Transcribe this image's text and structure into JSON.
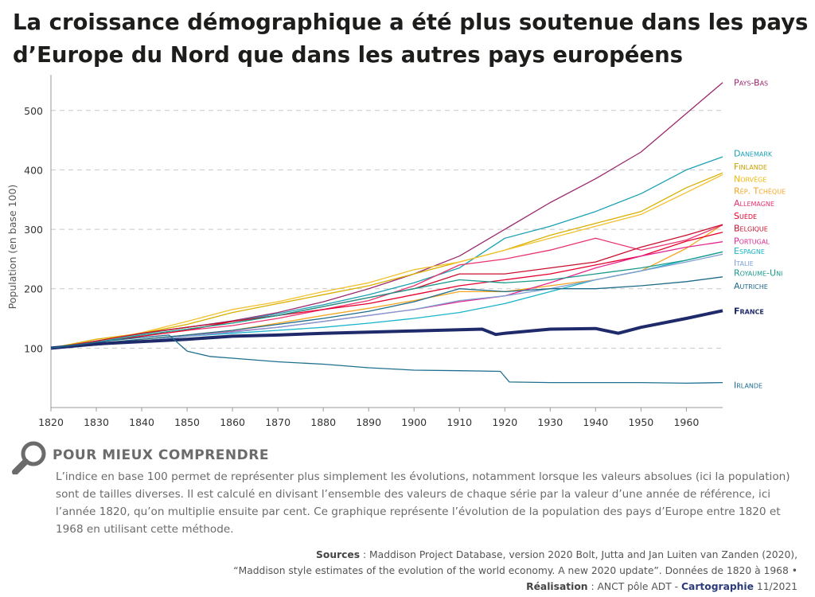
{
  "title": "La croissance démographique a été plus soutenue dans les pays d’Europe du Nord que dans les autres pays européens",
  "note": {
    "heading": "POUR MIEUX COMPRENDRE",
    "icon": "magnifier-icon",
    "text": "L’indice en base 100 permet de représenter plus simplement les évolutions, notamment lorsque les valeurs absolues (ici la population) sont de tailles diverses. Il est calculé en divisant l’ensemble des valeurs de chaque série par la valeur d’une année de référence, ici l’année 1820, qu’on multiplie ensuite par cent. Ce graphique représente l’évolution de la population des pays d’Europe entre 1820 et 1968 en utilisant cette méthode."
  },
  "sources": {
    "label1": "Sources",
    "line1": " : Maddison Project Database, version 2020 Bolt, Jutta and Jan Luiten van Zanden (2020),",
    "line2": "“Maddison style estimates of the evolution of the world economy. A new 2020 update”. Données de 1820 à 1968 •",
    "label2": "Réalisation",
    "line3": " : ANCT pôle ADT - ",
    "carto": "Cartographie",
    "date": " 11/2021"
  },
  "chart_data": {
    "type": "line",
    "ylabel": "Population (en base 100)",
    "xlim": [
      1820,
      1968
    ],
    "ylim": [
      0,
      560
    ],
    "xticks": [
      1820,
      1830,
      1840,
      1850,
      1860,
      1870,
      1880,
      1890,
      1900,
      1910,
      1920,
      1930,
      1940,
      1950,
      1960
    ],
    "yticks": [
      100,
      200,
      300,
      400,
      500
    ],
    "grid": "horizontal-dashed",
    "series": [
      {
        "name": "Pays-Bas",
        "color": "#9b2a6e",
        "x": [
          1820,
          1830,
          1840,
          1850,
          1860,
          1870,
          1880,
          1890,
          1900,
          1910,
          1920,
          1930,
          1940,
          1950,
          1960,
          1968
        ],
        "values": [
          100,
          112,
          125,
          135,
          146,
          160,
          178,
          200,
          225,
          255,
          300,
          345,
          385,
          430,
          495,
          547
        ]
      },
      {
        "name": "Danemark",
        "color": "#1ba0b5",
        "x": [
          1820,
          1830,
          1840,
          1850,
          1860,
          1870,
          1880,
          1890,
          1900,
          1910,
          1920,
          1930,
          1940,
          1950,
          1960,
          1968
        ],
        "values": [
          100,
          112,
          124,
          135,
          145,
          158,
          173,
          190,
          210,
          235,
          285,
          305,
          330,
          360,
          400,
          422
        ]
      },
      {
        "name": "Finlande",
        "color": "#d9b000",
        "x": [
          1820,
          1830,
          1840,
          1850,
          1860,
          1870,
          1880,
          1890,
          1900,
          1910,
          1920,
          1930,
          1940,
          1950,
          1960,
          1968
        ],
        "values": [
          100,
          115,
          125,
          140,
          160,
          175,
          190,
          205,
          225,
          245,
          265,
          290,
          310,
          330,
          370,
          395
        ]
      },
      {
        "name": "Norvège",
        "color": "#f2c12e",
        "x": [
          1820,
          1830,
          1840,
          1850,
          1860,
          1870,
          1880,
          1890,
          1900,
          1910,
          1920,
          1930,
          1940,
          1950,
          1960,
          1968
        ],
        "values": [
          100,
          112,
          126,
          145,
          165,
          178,
          195,
          210,
          232,
          245,
          265,
          285,
          305,
          325,
          362,
          392
        ]
      },
      {
        "name": "Rép. Tchèque",
        "color": "#f5a623",
        "x": [
          1820,
          1830,
          1840,
          1850,
          1860,
          1870,
          1880,
          1890,
          1900,
          1910,
          1920,
          1930,
          1940,
          1950,
          1960,
          1968
        ],
        "values": [
          100,
          108,
          115,
          122,
          130,
          142,
          155,
          167,
          180,
          195,
          195,
          205,
          215,
          230,
          268,
          308
        ]
      },
      {
        "name": "Allemagne",
        "color": "#e8336f",
        "x": [
          1820,
          1830,
          1840,
          1850,
          1860,
          1870,
          1880,
          1890,
          1900,
          1910,
          1920,
          1930,
          1940,
          1950,
          1960,
          1968
        ],
        "values": [
          100,
          110,
          120,
          130,
          138,
          150,
          165,
          180,
          205,
          240,
          250,
          265,
          285,
          265,
          282,
          307
        ]
      },
      {
        "name": "Suède",
        "color": "#e5002d",
        "x": [
          1820,
          1830,
          1840,
          1850,
          1860,
          1870,
          1880,
          1890,
          1900,
          1910,
          1920,
          1930,
          1940,
          1950,
          1960,
          1968
        ],
        "values": [
          100,
          110,
          120,
          130,
          145,
          155,
          165,
          175,
          190,
          205,
          215,
          225,
          240,
          255,
          280,
          295
        ]
      },
      {
        "name": "Belgique",
        "color": "#c8102e",
        "x": [
          1820,
          1830,
          1840,
          1850,
          1860,
          1870,
          1880,
          1890,
          1900,
          1910,
          1920,
          1930,
          1940,
          1950,
          1960,
          1968
        ],
        "values": [
          100,
          112,
          125,
          135,
          145,
          155,
          170,
          185,
          200,
          225,
          225,
          235,
          245,
          270,
          290,
          308
        ]
      },
      {
        "name": "Portugal",
        "color": "#e4268f",
        "x": [
          1820,
          1830,
          1840,
          1850,
          1860,
          1870,
          1880,
          1890,
          1900,
          1910,
          1920,
          1930,
          1940,
          1950,
          1960,
          1968
        ],
        "values": [
          100,
          105,
          112,
          120,
          128,
          135,
          145,
          155,
          165,
          178,
          188,
          210,
          235,
          255,
          270,
          279
        ]
      },
      {
        "name": "Espagne",
        "color": "#19b5c8",
        "x": [
          1820,
          1830,
          1840,
          1850,
          1860,
          1870,
          1880,
          1890,
          1900,
          1910,
          1920,
          1930,
          1940,
          1950,
          1960,
          1968
        ],
        "values": [
          100,
          105,
          112,
          120,
          125,
          130,
          135,
          142,
          150,
          160,
          175,
          195,
          215,
          230,
          248,
          262
        ]
      },
      {
        "name": "Italie",
        "color": "#7f9fd3",
        "x": [
          1820,
          1830,
          1840,
          1850,
          1860,
          1870,
          1880,
          1890,
          1900,
          1910,
          1920,
          1930,
          1940,
          1950,
          1960,
          1968
        ],
        "values": [
          100,
          106,
          112,
          120,
          127,
          135,
          145,
          155,
          165,
          180,
          188,
          200,
          215,
          230,
          245,
          258
        ]
      },
      {
        "name": "Royaume-Uni",
        "color": "#1a9a8a",
        "x": [
          1820,
          1830,
          1840,
          1850,
          1860,
          1870,
          1880,
          1890,
          1900,
          1910,
          1920,
          1930,
          1940,
          1950,
          1960,
          1968
        ],
        "values": [
          100,
          110,
          122,
          132,
          142,
          155,
          170,
          185,
          200,
          215,
          210,
          215,
          225,
          235,
          248,
          262
        ]
      },
      {
        "name": "Autriche",
        "color": "#1f6b8a",
        "x": [
          1820,
          1830,
          1840,
          1850,
          1860,
          1870,
          1880,
          1890,
          1900,
          1910,
          1920,
          1930,
          1940,
          1950,
          1960,
          1968
        ],
        "values": [
          100,
          108,
          115,
          122,
          130,
          140,
          150,
          162,
          178,
          200,
          195,
          200,
          200,
          205,
          212,
          220
        ]
      },
      {
        "name": "France",
        "color": "#1f2a6b",
        "x": [
          1820,
          1830,
          1840,
          1850,
          1860,
          1870,
          1880,
          1890,
          1900,
          1910,
          1915,
          1918,
          1920,
          1930,
          1940,
          1945,
          1950,
          1960,
          1968
        ],
        "values": [
          100,
          107,
          111,
          115,
          120,
          122,
          125,
          127,
          129,
          131,
          132,
          123,
          125,
          132,
          133,
          125,
          135,
          150,
          163
        ]
      },
      {
        "name": "Irlande",
        "color": "#1f6f90",
        "x": [
          1820,
          1830,
          1840,
          1846,
          1850,
          1855,
          1860,
          1870,
          1880,
          1890,
          1900,
          1910,
          1919,
          1921,
          1930,
          1940,
          1950,
          1960,
          1968
        ],
        "values": [
          100,
          110,
          118,
          122,
          95,
          86,
          83,
          77,
          73,
          67,
          63,
          62,
          61,
          43,
          42,
          42,
          42,
          41,
          42
        ]
      }
    ],
    "labels": [
      {
        "series": "Pays-Bas",
        "text": "Pays-Bas",
        "color": "#9b2a6e",
        "y": 547
      },
      {
        "series": "Danemark",
        "text": "Danemark",
        "color": "#1ba0b5",
        "y": 428
      },
      {
        "series": "Finlande",
        "text": "Finlande",
        "color": "#c9a000",
        "y": 406
      },
      {
        "series": "Norvège",
        "text": "Norvège",
        "color": "#f2b705",
        "y": 385
      },
      {
        "series": "Rép. Tchèque",
        "text": "Rép. Tchèque",
        "color": "#f5a623",
        "y": 365
      },
      {
        "series": "Allemagne",
        "text": "Allemagne",
        "color": "#e8336f",
        "y": 344
      },
      {
        "series": "Suède",
        "text": "Suède",
        "color": "#e5002d",
        "y": 323
      },
      {
        "series": "Belgique",
        "text": "Belgique",
        "color": "#c8102e",
        "y": 302
      },
      {
        "series": "Portugal",
        "text": "Portugal",
        "color": "#e4268f",
        "y": 281
      },
      {
        "series": "Espagne",
        "text": "Espagne",
        "color": "#19b5c8",
        "y": 264
      },
      {
        "series": "Italie",
        "text": "Italie",
        "color": "#7f9fd3",
        "y": 244
      },
      {
        "series": "Royaume-Uni",
        "text": "Royaume-Uni",
        "color": "#1a9a8a",
        "y": 227
      },
      {
        "series": "Autriche",
        "text": "Autriche",
        "color": "#1f6b8a",
        "y": 205
      },
      {
        "series": "France",
        "text": "France",
        "color": "#1f2a6b",
        "y": 163,
        "bold": true
      },
      {
        "series": "Irlande",
        "text": "Irlande",
        "color": "#1f6f90",
        "y": 38
      }
    ]
  }
}
